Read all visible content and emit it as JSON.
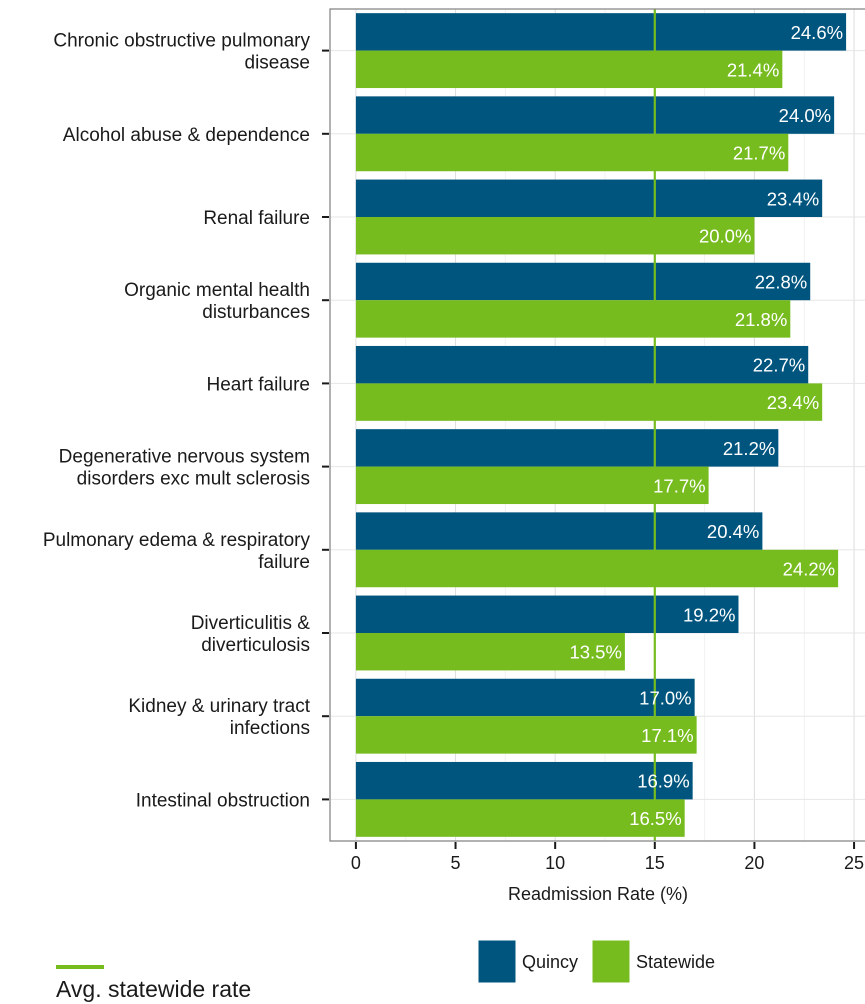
{
  "chart_data": {
    "type": "bar",
    "orientation": "horizontal",
    "categories": [
      [
        "Chronic obstructive pulmonary",
        "disease"
      ],
      [
        "Alcohol abuse & dependence"
      ],
      [
        "Renal failure"
      ],
      [
        "Organic mental health",
        "disturbances"
      ],
      [
        "Heart failure"
      ],
      [
        "Degenerative nervous system",
        "disorders exc mult sclerosis"
      ],
      [
        "Pulmonary edema & respiratory",
        "failure"
      ],
      [
        "Diverticulitis &",
        "diverticulosis"
      ],
      [
        "Kidney & urinary tract",
        "infections"
      ],
      [
        "Intestinal obstruction"
      ]
    ],
    "series": [
      {
        "name": "Quincy",
        "color": "#00557f",
        "values": [
          24.6,
          24.0,
          23.4,
          22.8,
          22.7,
          21.2,
          20.4,
          19.2,
          17.0,
          16.9
        ],
        "labels": [
          "24.6%",
          "24.0%",
          "23.4%",
          "22.8%",
          "22.7%",
          "21.2%",
          "20.4%",
          "19.2%",
          "17.0%",
          "16.9%"
        ]
      },
      {
        "name": "Statewide",
        "color": "#77bc1f",
        "values": [
          21.4,
          21.7,
          20.0,
          21.8,
          23.4,
          17.7,
          24.2,
          13.5,
          17.1,
          16.5
        ],
        "labels": [
          "21.4%",
          "21.7%",
          "20.0%",
          "21.8%",
          "23.4%",
          "17.7%",
          "24.2%",
          "13.5%",
          "17.1%",
          "16.5%"
        ]
      }
    ],
    "xlabel": "Readmission Rate (%)",
    "xlim": [
      -1.3,
      25.8
    ],
    "xticks": [
      0,
      5,
      10,
      15,
      20,
      25
    ],
    "grid": true,
    "reference_line": {
      "value": 15,
      "label": "Avg. statewide rate",
      "color": "#77bc1f"
    },
    "legend_position": "bottom"
  }
}
